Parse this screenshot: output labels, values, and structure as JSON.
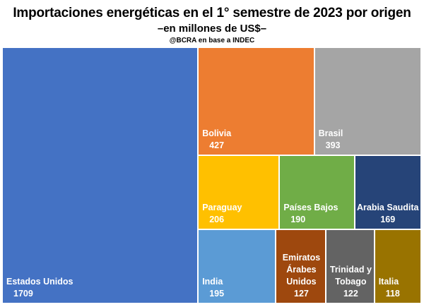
{
  "chart_data": {
    "type": "treemap",
    "title": "Importaciones energéticas en el 1° semestre de 2023 por origen",
    "subtitle": "–en millones de US$–",
    "source": "@BCRA en base a INDEC",
    "unit": "millones de US$",
    "categories": [
      "Estados Unidos",
      "Bolivia",
      "Brasil",
      "Paraguay",
      "Países Bajos",
      "Arabia Saudita",
      "India",
      "Emiratos Árabes Unidos",
      "Trinidad y Tobago",
      "Italia"
    ],
    "values": [
      1709,
      427,
      393,
      206,
      190,
      169,
      195,
      127,
      122,
      118
    ],
    "colors": [
      "#4472C4",
      "#ED7D31",
      "#A5A5A5",
      "#FFC000",
      "#70AD47",
      "#264478",
      "#5B9BD5",
      "#9E480E",
      "#636363",
      "#997300"
    ]
  }
}
